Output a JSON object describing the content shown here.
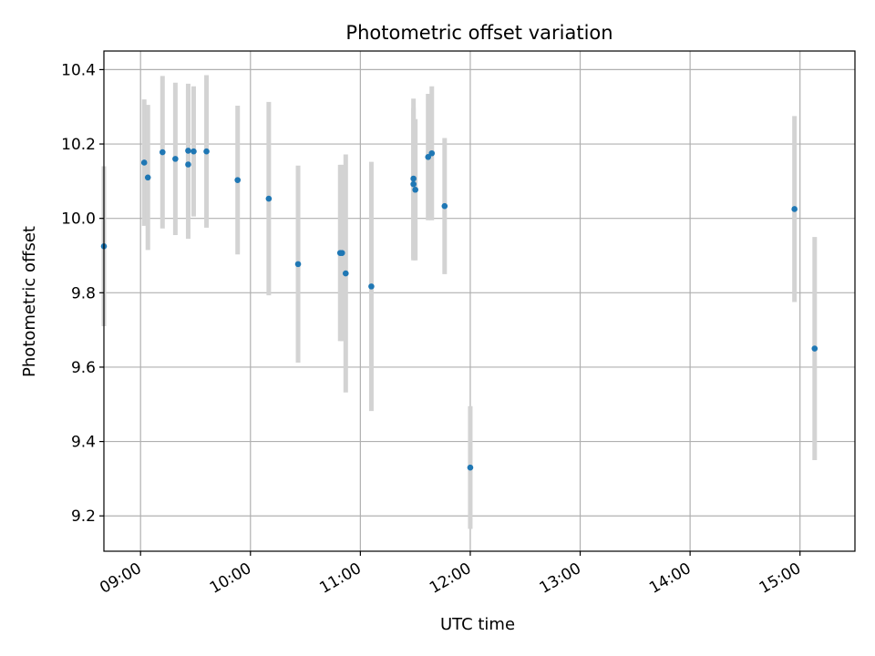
{
  "chart_data": {
    "type": "scatter",
    "title": "Photometric offset variation",
    "xlabel": "UTC time",
    "ylabel": "Photometric offset",
    "x_is_time": true,
    "xlim": [
      "08:40",
      "15:30"
    ],
    "ylim": [
      9.105,
      10.45
    ],
    "xticks": [
      "09:00",
      "10:00",
      "11:00",
      "12:00",
      "13:00",
      "14:00",
      "15:00"
    ],
    "yticks": [
      9.2,
      9.4,
      9.6,
      9.8,
      10.0,
      10.2,
      10.4
    ],
    "ytick_labels": [
      "9.2",
      "9.4",
      "9.6",
      "9.8",
      "10.0",
      "10.2",
      "10.4"
    ],
    "grid": true,
    "point_color": "#1f77b4",
    "errorbar_color": "#d3d3d3",
    "points": [
      {
        "time": "08:40",
        "y": 9.925,
        "yerr": 0.215
      },
      {
        "time": "09:02",
        "y": 10.15,
        "yerr": 0.17
      },
      {
        "time": "09:04",
        "y": 10.11,
        "yerr": 0.195
      },
      {
        "time": "09:12",
        "y": 10.178,
        "yerr": 0.205
      },
      {
        "time": "09:19",
        "y": 10.16,
        "yerr": 0.205
      },
      {
        "time": "09:26",
        "y": 10.145,
        "yerr": 0.2
      },
      {
        "time": "09:26",
        "y": 10.182,
        "yerr": 0.18
      },
      {
        "time": "09:29",
        "y": 10.18,
        "yerr": 0.175
      },
      {
        "time": "09:36",
        "y": 10.18,
        "yerr": 0.205
      },
      {
        "time": "09:53",
        "y": 10.103,
        "yerr": 0.2
      },
      {
        "time": "10:10",
        "y": 10.053,
        "yerr": 0.26
      },
      {
        "time": "10:26",
        "y": 9.877,
        "yerr": 0.265
      },
      {
        "time": "10:49",
        "y": 9.907,
        "yerr": 0.237
      },
      {
        "time": "10:50",
        "y": 9.907,
        "yerr": 0.237
      },
      {
        "time": "10:52",
        "y": 9.852,
        "yerr": 0.32
      },
      {
        "time": "11:06",
        "y": 9.817,
        "yerr": 0.335
      },
      {
        "time": "11:29",
        "y": 10.107,
        "yerr": 0.215
      },
      {
        "time": "11:29",
        "y": 10.092,
        "yerr": 0.205
      },
      {
        "time": "11:30",
        "y": 10.077,
        "yerr": 0.19
      },
      {
        "time": "11:37",
        "y": 10.165,
        "yerr": 0.17
      },
      {
        "time": "11:39",
        "y": 10.175,
        "yerr": 0.18
      },
      {
        "time": "11:46",
        "y": 10.033,
        "yerr": 0.183
      },
      {
        "time": "12:00",
        "y": 9.33,
        "yerr": 0.165
      },
      {
        "time": "14:57",
        "y": 10.025,
        "yerr": 0.25
      },
      {
        "time": "15:08",
        "y": 9.65,
        "yerr": 0.3
      }
    ]
  }
}
